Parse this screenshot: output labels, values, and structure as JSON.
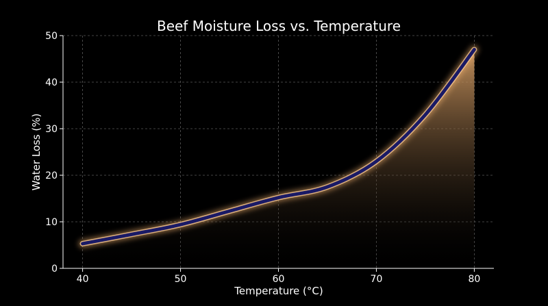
{
  "chart_data": {
    "type": "area",
    "title": "Beef Moisture Loss vs. Temperature",
    "xlabel": "Temperature (°C)",
    "ylabel": "Water Loss (%)",
    "xlim": [
      38,
      82
    ],
    "ylim": [
      0,
      50
    ],
    "xticks": [
      40,
      50,
      60,
      70,
      80
    ],
    "yticks": [
      0,
      10,
      20,
      30,
      40,
      50
    ],
    "grid": true,
    "colors": {
      "background": "#000000",
      "line": "#1a1a66",
      "glow": "#f0b070",
      "fill_top": "#d9a066",
      "fill_bottom": "#000000"
    },
    "series": [
      {
        "x": [
          40,
          45,
          50,
          55,
          60,
          65,
          70,
          75,
          80
        ],
        "y": [
          5.3,
          7.3,
          9.4,
          12.3,
          15.2,
          17.5,
          23.0,
          33.0,
          47.0
        ]
      }
    ]
  }
}
